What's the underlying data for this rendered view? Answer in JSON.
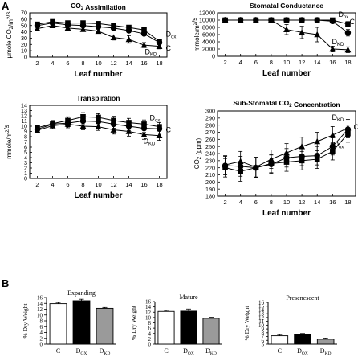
{
  "panel_labels": {
    "A": "A",
    "B": "B"
  },
  "chart_data": [
    {
      "id": "co2",
      "type": "line",
      "title": "CO2 Assimilation",
      "xlabel": "Leaf number",
      "ylabel": "µmole CO2/m2/s",
      "x": [
        2,
        4,
        6,
        8,
        10,
        12,
        14,
        16,
        18
      ],
      "xlim": [
        1,
        19
      ],
      "ylim": [
        0,
        70
      ],
      "yticks": [
        0,
        10,
        20,
        30,
        40,
        50,
        60,
        70
      ],
      "series": [
        {
          "name": "Dox",
          "marker": "square",
          "values": [
            52,
            56,
            54,
            54,
            53,
            50,
            47,
            43,
            25
          ],
          "errors": [
            3,
            3,
            3,
            3,
            3,
            3,
            3,
            3,
            3
          ]
        },
        {
          "name": "C",
          "marker": "circle",
          "values": [
            50,
            54,
            51,
            50,
            48,
            46,
            42,
            37,
            23
          ],
          "errors": [
            3,
            3,
            3,
            3,
            3,
            3,
            3,
            3,
            3
          ]
        },
        {
          "name": "DKD",
          "marker": "triangle",
          "values": [
            45,
            50,
            46,
            44,
            41,
            31,
            28,
            19,
            17
          ],
          "errors": [
            3,
            3,
            3,
            3,
            3,
            4,
            6,
            4,
            4
          ]
        }
      ],
      "annotations": [
        {
          "series": "Dox",
          "text": "D",
          "sub": "ox"
        },
        {
          "series": "C",
          "text": "C",
          "sub": ""
        },
        {
          "series": "DKD",
          "text": "D",
          "sub": "KD"
        }
      ]
    },
    {
      "id": "stom",
      "type": "line",
      "title": "Stomatal Conductance",
      "xlabel": "Leaf number",
      "ylabel": "mmole/m2/s",
      "x": [
        2,
        4,
        6,
        8,
        10,
        12,
        14,
        16,
        18
      ],
      "xlim": [
        1,
        19
      ],
      "ylim": [
        0,
        12000
      ],
      "yticks": [
        0,
        2000,
        4000,
        6000,
        8000,
        10000,
        12000
      ],
      "series": [
        {
          "name": "Dox",
          "marker": "square",
          "values": [
            10000,
            10000,
            10000,
            10000,
            10000,
            10000,
            10000,
            10000,
            8900
          ],
          "errors": [
            0,
            0,
            0,
            0,
            0,
            0,
            0,
            0,
            700
          ]
        },
        {
          "name": "C",
          "marker": "circle",
          "values": [
            10000,
            10000,
            10000,
            10000,
            10000,
            10000,
            10000,
            9700,
            6500
          ],
          "errors": [
            0,
            0,
            0,
            0,
            0,
            0,
            0,
            600,
            900
          ]
        },
        {
          "name": "DKD",
          "marker": "triangle",
          "values": [
            10000,
            10000,
            10000,
            10000,
            7400,
            6600,
            6000,
            2000,
            1800
          ],
          "errors": [
            0,
            0,
            0,
            0,
            1400,
            1700,
            2000,
            800,
            800
          ]
        }
      ],
      "annotations": [
        {
          "series": "Dox",
          "text": "D",
          "sub": "ox"
        },
        {
          "series": "C",
          "text": "C",
          "sub": ""
        },
        {
          "series": "DKD",
          "text": "D",
          "sub": "KD"
        }
      ]
    },
    {
      "id": "trans",
      "type": "line",
      "title": "Transpiration",
      "xlabel": "Leaf number",
      "ylabel": "mmole/m2/s",
      "x": [
        2,
        4,
        6,
        8,
        10,
        12,
        14,
        16,
        18
      ],
      "xlim": [
        1,
        19
      ],
      "ylim": [
        0,
        14
      ],
      "yticks": [
        0,
        1,
        2,
        3,
        4,
        5,
        6,
        7,
        8,
        9,
        10,
        11,
        12,
        13,
        14
      ],
      "series": [
        {
          "name": "Dox",
          "marker": "square",
          "values": [
            9.7,
            10.5,
            11.1,
            11.8,
            11.7,
            11.1,
            10.7,
            10.4,
            9.9
          ],
          "errors": [
            0.5,
            0.6,
            0.7,
            0.8,
            0.7,
            0.8,
            0.8,
            0.8,
            0.8
          ]
        },
        {
          "name": "C",
          "marker": "circle",
          "values": [
            9.4,
            10.4,
            10.6,
            11.0,
            10.9,
            10.4,
            10.0,
            9.6,
            9.5
          ],
          "errors": [
            0.5,
            0.6,
            0.7,
            0.7,
            0.7,
            0.8,
            0.8,
            0.8,
            0.8
          ]
        },
        {
          "name": "DKD",
          "marker": "triangle",
          "values": [
            9.2,
            10.1,
            10.4,
            10.0,
            9.9,
            9.3,
            9.0,
            8.4,
            8.2
          ],
          "errors": [
            0.5,
            0.6,
            0.7,
            0.7,
            0.7,
            0.8,
            0.9,
            0.9,
            0.9
          ]
        }
      ],
      "annotations": [
        {
          "series": "Dox",
          "text": "D",
          "sub": "ox"
        },
        {
          "series": "C",
          "text": "C",
          "sub": ""
        },
        {
          "series": "DKD",
          "text": "D",
          "sub": "KD"
        }
      ]
    },
    {
      "id": "subco2",
      "type": "line",
      "title": "Sub-Stomatal CO2 Concentration",
      "xlabel": "Leaf number",
      "ylabel": "CO2 (ppm)",
      "x": [
        2,
        4,
        6,
        8,
        10,
        12,
        14,
        16,
        18
      ],
      "xlim": [
        1,
        19
      ],
      "ylim": [
        180,
        300
      ],
      "yticks": [
        180,
        190,
        200,
        210,
        220,
        230,
        240,
        250,
        260,
        270,
        280,
        290,
        300
      ],
      "series": [
        {
          "name": "Dox",
          "marker": "square",
          "values": [
            220,
            215,
            220,
            226,
            228,
            230,
            232,
            243,
            268
          ],
          "errors": [
            13,
            14,
            14,
            13,
            13,
            13,
            13,
            12,
            12
          ]
        },
        {
          "name": "C",
          "marker": "circle",
          "values": [
            223,
            222,
            220,
            225,
            234,
            236,
            237,
            250,
            274
          ],
          "errors": [
            13,
            14,
            14,
            13,
            13,
            13,
            13,
            12,
            12
          ]
        },
        {
          "name": "DKD",
          "marker": "triangle",
          "values": [
            224,
            229,
            221,
            232,
            241,
            250,
            257,
            266,
            276
          ],
          "errors": [
            13,
            14,
            14,
            13,
            13,
            13,
            13,
            12,
            12
          ]
        }
      ],
      "annotations": [
        {
          "series": "DKD",
          "text": "D",
          "sub": "KD"
        },
        {
          "series": "C",
          "text": "C",
          "sub": ""
        },
        {
          "series": "Dox",
          "text": "D",
          "sub": "ox"
        }
      ]
    },
    {
      "id": "expanding",
      "type": "bar",
      "title": "Expanding",
      "ylabel": "% Dry Weight",
      "categories": [
        {
          "text": "C",
          "sub": ""
        },
        {
          "text": "D",
          "sub": "OX"
        },
        {
          "text": "D",
          "sub": "KD"
        }
      ],
      "values": [
        13.9,
        14.9,
        12.3
      ],
      "errors": [
        0.4,
        0.5,
        0.3
      ],
      "colors": [
        "#ffffff",
        "#000000",
        "#9a9a9a"
      ],
      "ylim": [
        0,
        16
      ],
      "yticks": [
        0,
        2,
        4,
        6,
        8,
        10,
        12,
        14,
        16
      ]
    },
    {
      "id": "mature",
      "type": "bar",
      "title": "Mature",
      "ylabel": "% Dry Weight",
      "categories": [
        {
          "text": "C",
          "sub": ""
        },
        {
          "text": "D",
          "sub": "OX"
        },
        {
          "text": "D",
          "sub": "KD"
        }
      ],
      "values": [
        12.3,
        12.4,
        9.7
      ],
      "errors": [
        0.4,
        0.8,
        0.4
      ],
      "colors": [
        "#ffffff",
        "#000000",
        "#9a9a9a"
      ],
      "ylim": [
        0,
        16
      ],
      "yticks": [
        0,
        2,
        4,
        6,
        8,
        10,
        12,
        14,
        16
      ]
    },
    {
      "id": "presenescent",
      "type": "bar",
      "title": "Presenescent",
      "ylabel": "% Dry Weight",
      "categories": [
        {
          "text": "C",
          "sub": ""
        },
        {
          "text": "D",
          "sub": "OX"
        },
        {
          "text": "D",
          "sub": "KD"
        }
      ],
      "values": [
        7.2,
        7.5,
        6.3
      ],
      "errors": [
        0.3,
        0.3,
        0.3
      ],
      "colors": [
        "#ffffff",
        "#000000",
        "#9a9a9a"
      ],
      "ylim": [
        5,
        16
      ],
      "yticks": [
        5,
        6,
        7,
        8,
        9,
        10,
        11,
        12,
        13,
        14,
        15,
        16
      ]
    }
  ]
}
